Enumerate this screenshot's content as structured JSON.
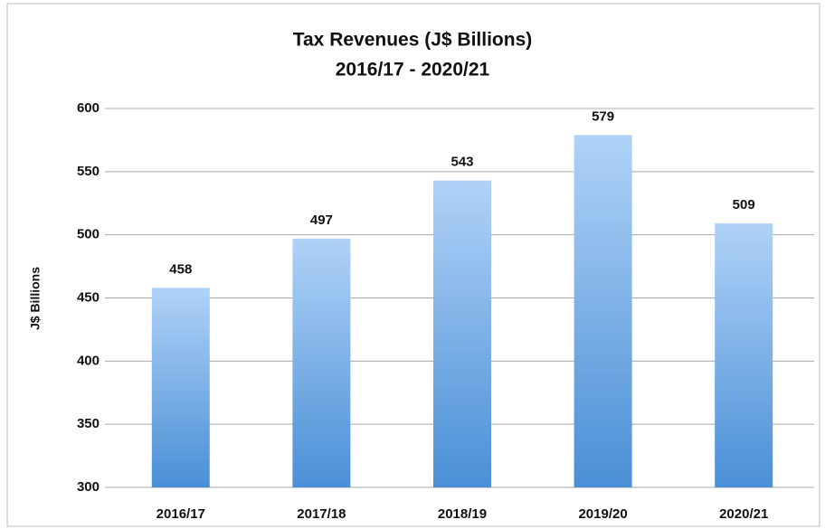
{
  "chart_data": {
    "type": "bar",
    "title": "Tax Revenues (J$ Billions)",
    "subtitle": "2016/17 - 2020/21",
    "y_label": "J$ Billions",
    "categories": [
      "2016/17",
      "2017/18",
      "2018/19",
      "2019/20",
      "2020/21"
    ],
    "values": [
      458,
      497,
      543,
      579,
      509
    ],
    "color": "#4a8fd6",
    "color_light": "#b0d2f7",
    "ylim": [
      300,
      600
    ],
    "yticks": [
      300,
      350,
      400,
      450,
      500,
      550,
      600
    ],
    "grid": true
  }
}
